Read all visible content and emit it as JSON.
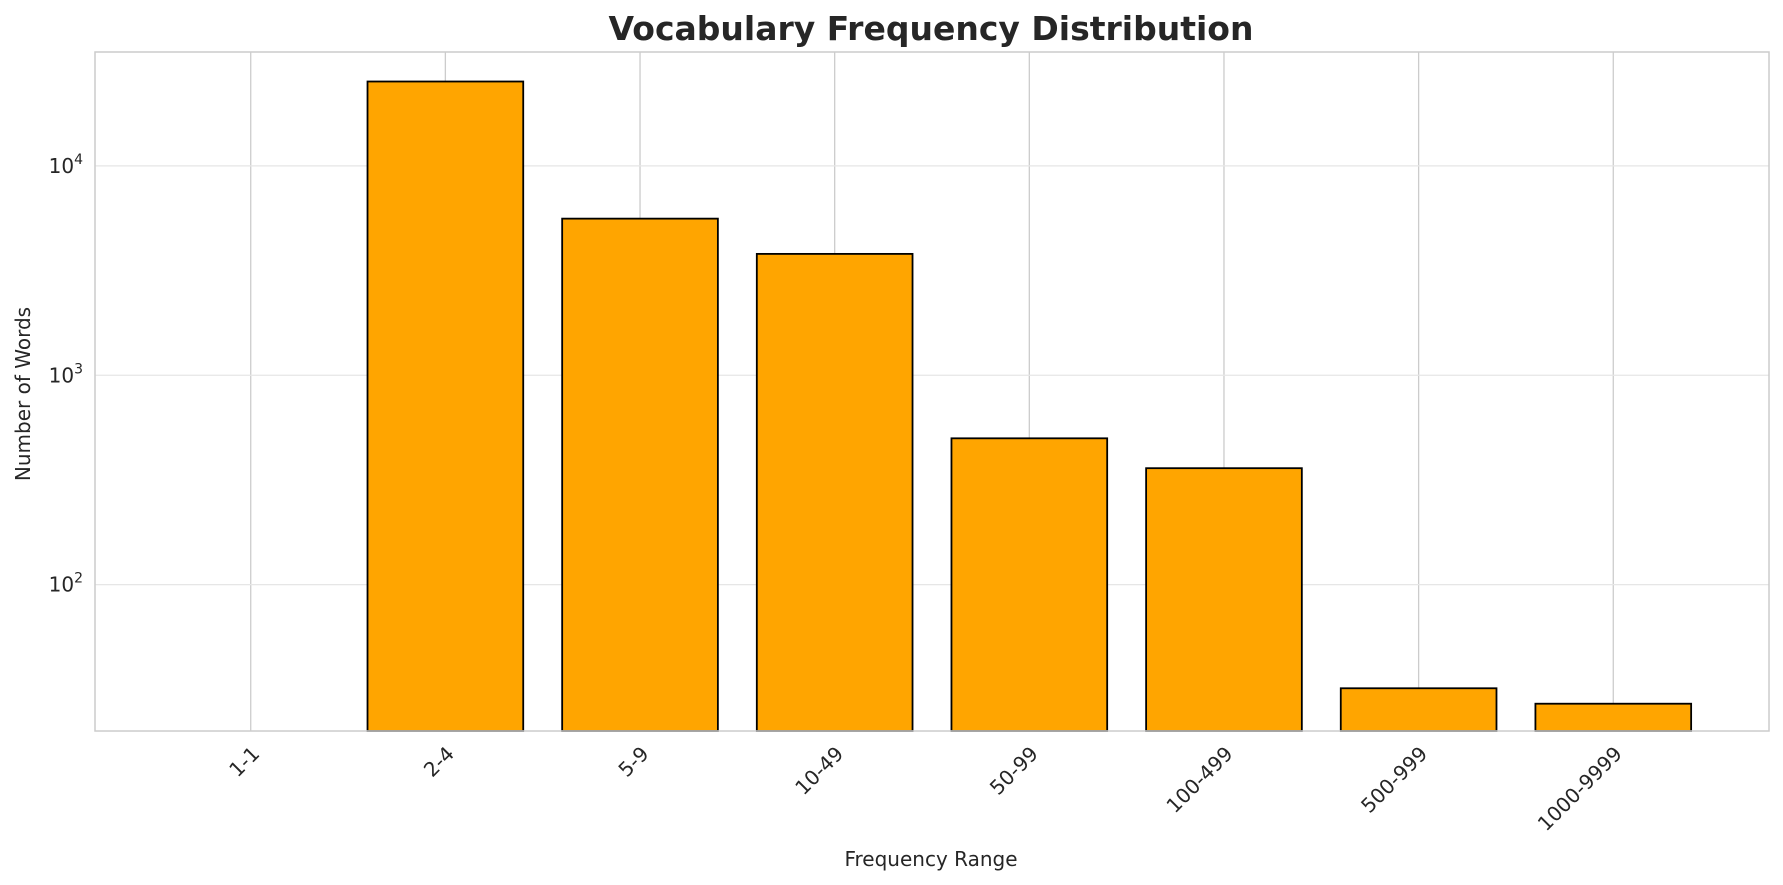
{
  "chart_data": {
    "type": "bar",
    "title": "Vocabulary Frequency Distribution",
    "xlabel": "Frequency Range",
    "ylabel": "Number of Words",
    "categories": [
      "1-1",
      "2-4",
      "5-9",
      "10-49",
      "50-99",
      "100-499",
      "500-999",
      "1000-9999"
    ],
    "values": [
      0,
      25300,
      5600,
      3800,
      500,
      360,
      32,
      27
    ],
    "yscale": "log",
    "ylim": [
      20,
      35000
    ],
    "yticks": [
      {
        "base": "10",
        "exp": "2",
        "value": 100
      },
      {
        "base": "10",
        "exp": "3",
        "value": 1000
      },
      {
        "base": "10",
        "exp": "4",
        "value": 10000
      }
    ],
    "grid": true,
    "bar_color": "#FFA500",
    "edge_color": "#000000"
  }
}
